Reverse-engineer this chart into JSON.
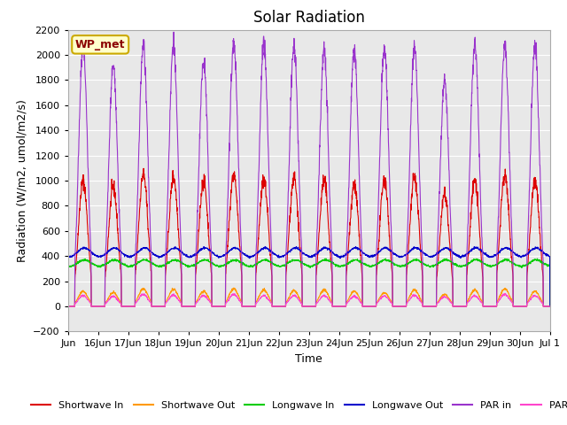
{
  "title": "Solar Radiation",
  "xlabel": "Time",
  "ylabel": "Radiation (W/m2, umol/m2/s)",
  "ylim": [
    -200,
    2200
  ],
  "yticks": [
    -200,
    0,
    200,
    400,
    600,
    800,
    1000,
    1200,
    1400,
    1600,
    1800,
    2000,
    2200
  ],
  "background_color": "#e8e8e8",
  "figure_bg": "#ffffff",
  "annotation_text": "WP_met",
  "annotation_bg": "#ffffcc",
  "annotation_border": "#ccaa00",
  "annotation_text_color": "#8b0000",
  "series": {
    "shortwave_in": {
      "label": "Shortwave In",
      "color": "#dd0000"
    },
    "shortwave_out": {
      "label": "Shortwave Out",
      "color": "#ff9900"
    },
    "longwave_in": {
      "label": "Longwave In",
      "color": "#00cc00"
    },
    "longwave_out": {
      "label": "Longwave Out",
      "color": "#0000cc"
    },
    "par_in": {
      "label": "PAR in",
      "color": "#9933cc"
    },
    "par_out": {
      "label": "PAR out",
      "color": "#ff44cc"
    }
  },
  "n_days": 16,
  "shortwave_in_peaks": [
    1000,
    950,
    1050,
    1030,
    1000,
    1050,
    1010,
    1020,
    1000,
    970,
    1000,
    1020,
    900,
    1000,
    1050,
    1000
  ],
  "shortwave_out_peaks": [
    120,
    110,
    140,
    135,
    120,
    140,
    130,
    125,
    130,
    120,
    110,
    130,
    95,
    130,
    140,
    120
  ],
  "longwave_in_base": 315,
  "longwave_in_amp": 55,
  "longwave_out_base": 390,
  "longwave_out_amp": 75,
  "par_in_peaks": [
    2080,
    1920,
    2080,
    2080,
    1960,
    2100,
    2080,
    2080,
    2050,
    2030,
    2050,
    2060,
    1800,
    2100,
    2090,
    2080
  ],
  "par_out_peaks": [
    85,
    80,
    95,
    90,
    85,
    95,
    85,
    85,
    85,
    80,
    83,
    88,
    75,
    85,
    95,
    85
  ],
  "title_fontsize": 12,
  "label_fontsize": 9,
  "tick_fontsize": 8,
  "legend_fontsize": 8
}
